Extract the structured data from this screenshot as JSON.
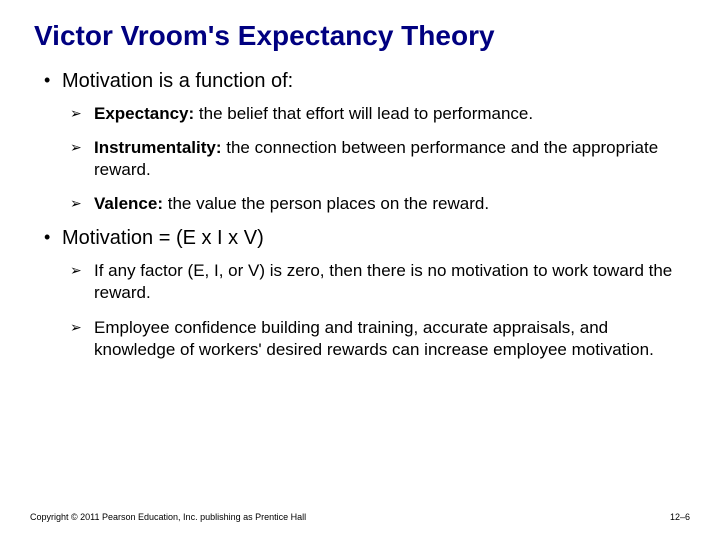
{
  "title": "Victor Vroom's Expectancy Theory",
  "bullets": [
    {
      "text": "Motivation is a function of:",
      "sub": [
        {
          "term": "Expectancy:",
          "rest": " the belief that effort will lead to performance."
        },
        {
          "term": "Instrumentality:",
          "rest": " the connection between performance and the appropriate reward."
        },
        {
          "term": "Valence:",
          "rest": " the value the person places on the reward."
        }
      ]
    },
    {
      "text": "Motivation = (E x I x V)",
      "sub": [
        {
          "term": "",
          "rest": "If any factor (E, I, or V) is zero, then there is no motivation to work toward the reward."
        },
        {
          "term": "",
          "rest": "Employee confidence building and training, accurate appraisals, and knowledge of workers' desired rewards can increase employee motivation."
        }
      ]
    }
  ],
  "footer": {
    "copyright": "Copyright © 2011 Pearson Education, Inc. publishing as Prentice Hall",
    "page": "12–6"
  },
  "colors": {
    "title": "#000080",
    "text": "#000000",
    "background": "#ffffff"
  }
}
